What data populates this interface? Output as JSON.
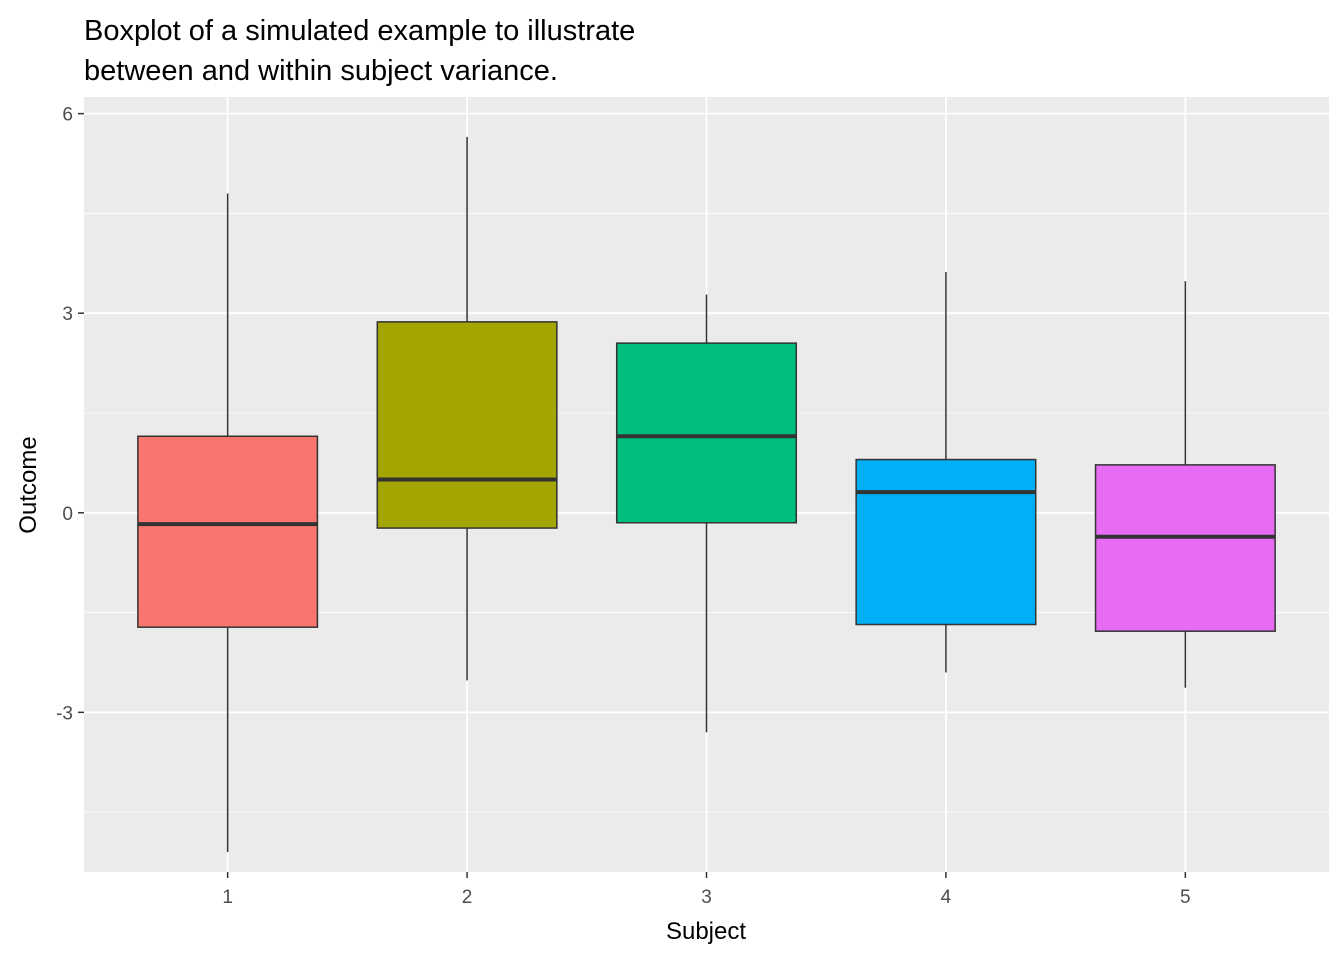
{
  "title_lines": [
    "Boxplot of a simulated example to illustrate",
    "between and within subject variance."
  ],
  "chart_data": {
    "type": "boxplot",
    "title": "Boxplot of a simulated example to illustrate between and within subject variance.",
    "xlabel": "Subject",
    "ylabel": "Outcome",
    "categories": [
      "1",
      "2",
      "3",
      "4",
      "5"
    ],
    "ylim": [
      -5.4,
      6.25
    ],
    "y_ticks": [
      -3,
      0,
      3,
      6
    ],
    "y_tick_labels": [
      "-3",
      "0",
      "3",
      "6"
    ],
    "grid": true,
    "legend": "none",
    "boxes": [
      {
        "category": "1",
        "fill": "#F8766D",
        "min": -5.1,
        "q1": -1.72,
        "median": -0.17,
        "q3": 1.15,
        "max": 4.8
      },
      {
        "category": "2",
        "fill": "#A3A500",
        "min": -2.52,
        "q1": -0.23,
        "median": 0.5,
        "q3": 2.87,
        "max": 5.65
      },
      {
        "category": "3",
        "fill": "#00BF7D",
        "min": -3.3,
        "q1": -0.15,
        "median": 1.15,
        "q3": 2.55,
        "max": 3.28
      },
      {
        "category": "4",
        "fill": "#00B0F6",
        "min": -2.4,
        "q1": -1.68,
        "median": 0.31,
        "q3": 0.8,
        "max": 3.62
      },
      {
        "category": "5",
        "fill": "#E76BF3",
        "min": -2.63,
        "q1": -1.78,
        "median": -0.36,
        "q3": 0.72,
        "max": 3.48
      }
    ]
  }
}
